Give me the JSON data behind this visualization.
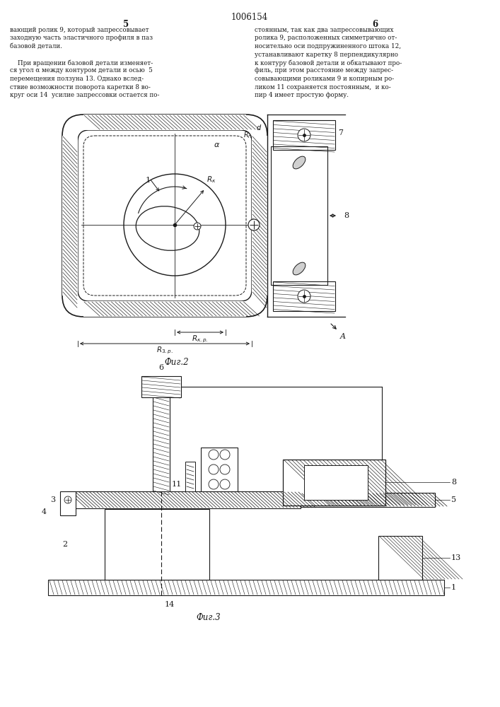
{
  "title": "1006154",
  "page_left": "5",
  "page_right": "6",
  "fig2_label": "Фиг.2",
  "fig3_label": "Фиг.3",
  "text_left": "вающий ролик 9, который запрессовывает\nзаходную часть эластичного профиля в паз\nбазовой детали.\n\n    При вращении базовой детали изменяет-\nся угол α между контуром детали и осью  5\nперемещения ползуна 13. Однако вслед-\nствие возможности поворота каретки 8 во-\nкруг оси 14  усилие запрессовки остается по-",
  "text_right": "стоянным, так как два запрессовывающих\nролика 9, расположенных симметрично от-\nносительно оси подпружиненного штока 12,\nустанавливают каретку 8 перпендикулярно\nк контуру базовой детали и обкатывают про-\nфиль, при этом расстояние между запрес-\nсовывающими роликами 9 и копирным ро-\nликом 11 сохраняется постоянным,  и ко-\nпир 4 имеет простую форму.",
  "bg_color": "#ffffff",
  "line_color": "#1a1a1a"
}
